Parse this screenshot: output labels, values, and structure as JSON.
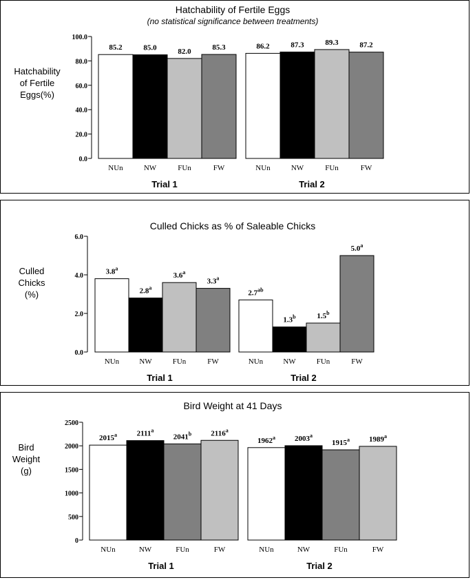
{
  "chart_data": [
    {
      "type": "bar",
      "title": "Hatchability of Fertile Eggs",
      "subtitle": "(no statistical significance between treatments)",
      "ylabel": [
        "Hatchability",
        "of Fertile",
        "Eggs(%)"
      ],
      "ylim": [
        0,
        100
      ],
      "yticks": [
        "0.0",
        "20.0",
        "40.0",
        "60.0",
        "80.0",
        "100.0"
      ],
      "categories": [
        "NUn",
        "NW",
        "FUn",
        "FW"
      ],
      "bar_colors": [
        "#ffffff",
        "#000000",
        "#c0c0c0",
        "#808080"
      ],
      "groups": [
        {
          "name": "Trial 1",
          "values": [
            85.2,
            85.0,
            82.0,
            85.3
          ],
          "labels": [
            "85.2",
            "85.0",
            "82.0",
            "85.3"
          ],
          "sups": [
            "",
            "",
            "",
            ""
          ]
        },
        {
          "name": "Trial 2",
          "values": [
            86.2,
            87.3,
            89.3,
            87.2
          ],
          "labels": [
            "86.2",
            "87.3",
            "89.3",
            "87.2"
          ],
          "sups": [
            "",
            "",
            "",
            ""
          ]
        }
      ]
    },
    {
      "type": "bar",
      "title": "Culled Chicks as % of Saleable Chicks",
      "ylabel": [
        "Culled",
        "Chicks",
        "(%)"
      ],
      "ylim": [
        0,
        6
      ],
      "yticks": [
        "0.0",
        "2.0",
        "4.0",
        "6.0"
      ],
      "categories": [
        "NUn",
        "NW",
        "FUn",
        "FW"
      ],
      "bar_colors": [
        "#ffffff",
        "#000000",
        "#c0c0c0",
        "#808080"
      ],
      "groups": [
        {
          "name": "Trial 1",
          "values": [
            3.8,
            2.8,
            3.6,
            3.3
          ],
          "labels": [
            "3.8",
            "2.8",
            "3.6",
            "3.3"
          ],
          "sups": [
            "a",
            "a",
            "a",
            "a"
          ]
        },
        {
          "name": "Trial 2",
          "values": [
            2.7,
            1.3,
            1.5,
            5.0
          ],
          "labels": [
            "2.7",
            "1.3",
            "1.5",
            "5.0"
          ],
          "sups": [
            "ab",
            "b",
            "b",
            "a"
          ]
        }
      ]
    },
    {
      "type": "bar",
      "title": "Bird Weight at 41 Days",
      "ylabel": [
        "Bird",
        "Weight",
        "(g)"
      ],
      "ylim": [
        0,
        2500
      ],
      "yticks": [
        "0",
        "500",
        "1000",
        "1500",
        "2000",
        "2500"
      ],
      "categories": [
        "NUn",
        "NW",
        "FUn",
        "FW"
      ],
      "bar_colors": [
        "#ffffff",
        "#000000",
        "#808080",
        "#c0c0c0"
      ],
      "groups": [
        {
          "name": "Trial 1",
          "values": [
            2015,
            2111,
            2041,
            2116
          ],
          "labels": [
            "2015",
            "2111",
            "2041",
            "2116"
          ],
          "sups": [
            "a",
            "a",
            "b",
            "a"
          ]
        },
        {
          "name": "Trial 2",
          "values": [
            1962,
            2003,
            1915,
            1989
          ],
          "labels": [
            "1962",
            "2003",
            "1915",
            "1989"
          ],
          "sups": [
            "a",
            "a",
            "a",
            "a"
          ]
        }
      ]
    }
  ]
}
